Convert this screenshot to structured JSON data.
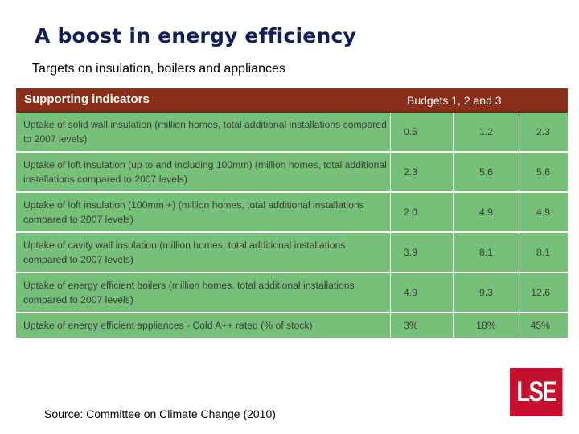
{
  "title": "A boost in energy efficiency",
  "subtitle": "Targets on insulation, boilers and appliances",
  "table": {
    "header_left": "Supporting indicators",
    "header_right": "Budgets 1, 2 and 3",
    "rows": [
      {
        "label": "Uptake of solid wall insulation (million homes, total additional installations compared to 2007 levels)",
        "b1": "0.5",
        "b2": "1.2",
        "b3": "2.3"
      },
      {
        "label": "Uptake of loft insulation (up to and including 100mm) (million homes, total additional installations compared to 2007 levels)",
        "b1": "2.3",
        "b2": "5.6",
        "b3": "5.6"
      },
      {
        "label": "Uptake of loft insulation (100mm +) (million homes, total additional installations compared to 2007 levels)",
        "b1": "2.0",
        "b2": "4.9",
        "b3": "4.9"
      },
      {
        "label": "Uptake of cavity wall insulation (million homes, total additional installations compared to 2007 levels)",
        "b1": "3.9",
        "b2": "8.1",
        "b3": "8.1"
      },
      {
        "label": "Uptake of energy efficient boilers (million homes, total additional installations compared to 2007 levels)",
        "b1": "4.9",
        "b2": "9.3",
        "b3": "12.6"
      },
      {
        "label": "Uptake of energy efficient appliances - Cold A++ rated (% of stock)",
        "b1": "3%",
        "b2": "18%",
        "b3": "45%"
      }
    ]
  },
  "source": "Source: Committee on Climate Change (2010)",
  "logo_text": "LSE",
  "colors": {
    "title": "#0f1f5c",
    "header_bg": "#8b2f1a",
    "row_bg": "#77c07a",
    "logo_bg": "#c8102e"
  }
}
